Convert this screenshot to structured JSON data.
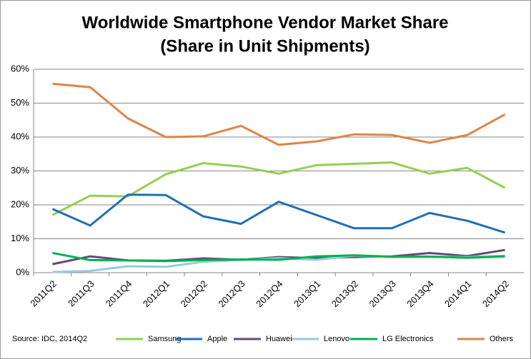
{
  "chart_data": {
    "type": "line",
    "title": "Worldwide Smartphone Vendor Market Share",
    "subtitle": "(Share in Unit Shipments)",
    "source": "Source: IDC, 2014Q2",
    "categories": [
      "2011Q2",
      "2011Q3",
      "2011Q4",
      "2012Q1",
      "2012Q2",
      "2012Q3",
      "2012Q4",
      "2013Q1",
      "2013Q2",
      "2013Q3",
      "2013Q4",
      "2014Q1",
      "2014Q2"
    ],
    "series": [
      {
        "name": "Samsung",
        "color": "#92d050",
        "values": [
          17.0,
          22.7,
          22.5,
          29.0,
          32.3,
          31.3,
          29.2,
          31.7,
          32.1,
          32.5,
          29.2,
          30.9,
          25.0
        ]
      },
      {
        "name": "Apple",
        "color": "#1f6fb5",
        "values": [
          18.8,
          13.9,
          23.0,
          22.9,
          16.6,
          14.4,
          20.9,
          17.0,
          13.1,
          13.1,
          17.6,
          15.3,
          11.8
        ]
      },
      {
        "name": "Huawei",
        "color": "#604a7b",
        "values": [
          2.5,
          4.8,
          3.6,
          3.5,
          4.2,
          3.8,
          4.6,
          4.3,
          4.6,
          4.8,
          5.8,
          4.9,
          6.7
        ]
      },
      {
        "name": "Lenovo",
        "color": "#93cddd",
        "values": [
          0.2,
          0.5,
          1.9,
          1.7,
          3.2,
          3.7,
          4.3,
          3.8,
          5.0,
          4.6,
          4.7,
          4.6,
          5.0
        ]
      },
      {
        "name": "LG Electronics",
        "color": "#00b050",
        "values": [
          5.8,
          3.7,
          3.6,
          3.4,
          3.7,
          3.9,
          3.8,
          4.8,
          5.1,
          4.7,
          4.7,
          4.4,
          4.8
        ]
      },
      {
        "name": "Others",
        "color": "#dd8547",
        "values": [
          55.7,
          54.7,
          45.5,
          40.0,
          40.2,
          43.3,
          37.7,
          38.7,
          40.8,
          40.6,
          38.3,
          40.6,
          46.7
        ]
      }
    ],
    "ylim": [
      0,
      60
    ],
    "yticks": [
      {
        "value": 0,
        "label": "0%"
      },
      {
        "value": 10,
        "label": "10%"
      },
      {
        "value": 20,
        "label": "20%"
      },
      {
        "value": 30,
        "label": "30%"
      },
      {
        "value": 40,
        "label": "40%"
      },
      {
        "value": 50,
        "label": "50%"
      },
      {
        "value": 60,
        "label": "60%"
      }
    ],
    "grid": true
  }
}
